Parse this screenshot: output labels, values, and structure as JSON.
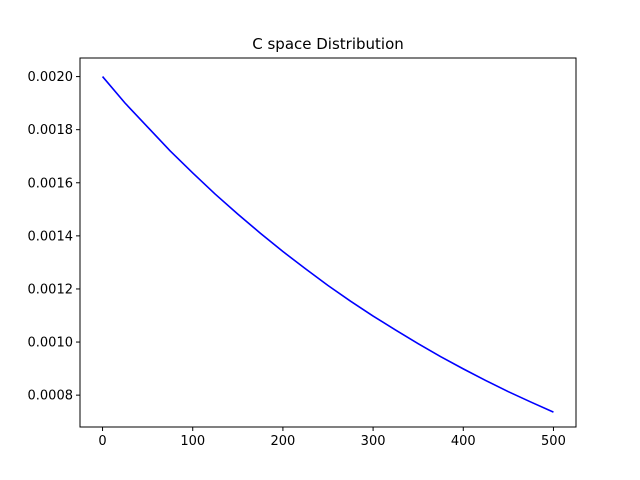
{
  "chart_data": {
    "type": "line",
    "title": "C space Distribution",
    "xlabel": "",
    "ylabel": "",
    "xlim": [
      -25,
      525
    ],
    "ylim": [
      0.00068,
      0.00207
    ],
    "xticks": [
      0,
      100,
      200,
      300,
      400,
      500
    ],
    "xtick_labels": [
      "0",
      "100",
      "200",
      "300",
      "400",
      "500"
    ],
    "yticks": [
      0.0008,
      0.001,
      0.0012,
      0.0014,
      0.0016,
      0.0018,
      0.002
    ],
    "ytick_labels": [
      "0.0008",
      "0.0010",
      "0.0012",
      "0.0014",
      "0.0016",
      "0.0018",
      "0.0020"
    ],
    "grid": false,
    "series": [
      {
        "color": "#0000ff",
        "x": [
          0,
          25,
          50,
          75,
          100,
          125,
          150,
          175,
          200,
          225,
          250,
          275,
          300,
          325,
          350,
          375,
          400,
          425,
          450,
          475,
          500
        ],
        "y": [
          0.002,
          0.0019,
          0.00181,
          0.00172,
          0.001637,
          0.001557,
          0.001482,
          0.00141,
          0.001341,
          0.001276,
          0.001213,
          0.001154,
          0.001098,
          0.001045,
          0.000994,
          0.000945,
          0.000899,
          0.000855,
          0.000813,
          0.000774,
          0.000736
        ]
      }
    ]
  }
}
